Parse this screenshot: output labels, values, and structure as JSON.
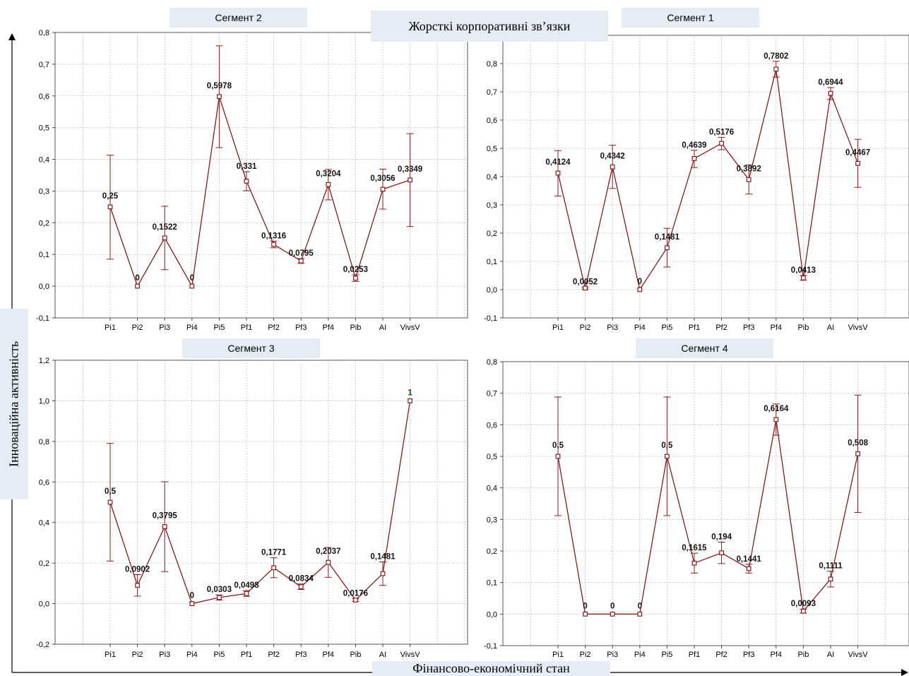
{
  "title": "Жорсткі корпоративні зв’язки",
  "xaxis_title": "Фінансово-економічний стан",
  "yaxis_title": "Інноваційна активність",
  "colors": {
    "series": "#8b1a1a",
    "grid": "#a8a8a8",
    "label_bg": "#e4ecf6"
  },
  "chart_data": [
    {
      "type": "line",
      "title": "Сегмент 2",
      "categories": [
        "Pi1",
        "Pi2",
        "Pi3",
        "Pi4",
        "Pi5",
        "Pf1",
        "Pf2",
        "Pf3",
        "Pf4",
        "Pib",
        "AI",
        "VivsV"
      ],
      "values": [
        0.25,
        0,
        0.1522,
        0,
        0.5978,
        0.331,
        0.1316,
        0.0795,
        0.3204,
        0.0253,
        0.3056,
        0.3349
      ],
      "labels": [
        "0,25",
        "0",
        "0,1522",
        "0",
        "0,5978",
        "0,331",
        "0,1316",
        "0,0795",
        "0,3204",
        "0,0253",
        "0,3056",
        "0,3349"
      ],
      "err_low": [
        0.085,
        0,
        0.052,
        0,
        0.437,
        0.301,
        0.121,
        0.072,
        0.272,
        0.015,
        0.243,
        0.188
      ],
      "err_high": [
        0.413,
        0,
        0.252,
        0,
        0.758,
        0.361,
        0.142,
        0.087,
        0.368,
        0.036,
        0.369,
        0.481
      ],
      "ylim": [
        -0.1,
        0.8
      ],
      "yticks": [
        -0.1,
        0,
        0.1,
        0.2,
        0.3,
        0.4,
        0.5,
        0.6,
        0.7,
        0.8
      ],
      "ytick_labels": [
        "-0,1",
        "0,0",
        "0,1",
        "0,2",
        "0,3",
        "0,4",
        "0,5",
        "0,6",
        "0,7",
        "0,8"
      ]
    },
    {
      "type": "line",
      "title": "Сегмент 1",
      "categories": [
        "Pi1",
        "Pi2",
        "Pi3",
        "Pi4",
        "Pi5",
        "Pf1",
        "Pf2",
        "Pf3",
        "Pf4",
        "Pib",
        "AI",
        "VivsV"
      ],
      "values": [
        0.4124,
        0.0052,
        0.4342,
        0,
        0.1481,
        0.4639,
        0.5176,
        0.3892,
        0.7802,
        0.0413,
        0.6944,
        0.4467
      ],
      "labels": [
        "0,4124",
        "0,0052",
        "0,4342",
        "0",
        "0,1481",
        "0,4639",
        "0,5176",
        "0,3892",
        "0,7802",
        "0,0413",
        "0,6944",
        "0,4467"
      ],
      "err_low": [
        0.331,
        0.002,
        0.358,
        0,
        0.08,
        0.432,
        0.495,
        0.338,
        0.752,
        0.033,
        0.673,
        0.362
      ],
      "err_high": [
        0.492,
        0.009,
        0.511,
        0,
        0.217,
        0.493,
        0.539,
        0.441,
        0.808,
        0.05,
        0.715,
        0.532
      ],
      "ylim": [
        -0.1,
        0.9
      ],
      "yticks": [
        -0.1,
        0,
        0.1,
        0.2,
        0.3,
        0.4,
        0.5,
        0.6,
        0.7,
        0.8
      ],
      "ytick_labels": [
        "-0,1",
        "0,0",
        "0,1",
        "0,2",
        "0,3",
        "0,4",
        "0,5",
        "0,6",
        "0,7",
        "0,8"
      ]
    },
    {
      "type": "line",
      "title": "Сегмент 3",
      "categories": [
        "Pi1",
        "Pi2",
        "Pi3",
        "Pi4",
        "Pi5",
        "Pf1",
        "Pf2",
        "Pf3",
        "Pf4",
        "Pib",
        "AI",
        "VivsV"
      ],
      "values": [
        0.5,
        0.0902,
        0.3795,
        0,
        0.0303,
        0.0498,
        0.1771,
        0.0834,
        0.2037,
        0.0176,
        0.1481,
        1
      ],
      "labels": [
        "0,5",
        "0,0902",
        "0,3795",
        "0",
        "0,0303",
        "0,0498",
        "0,1771",
        "0,0834",
        "0,2037",
        "0,0176",
        "0,1481",
        "1"
      ],
      "err_low": [
        0.21,
        0.037,
        0.158,
        0,
        0.018,
        0.036,
        0.128,
        0.07,
        0.13,
        0.011,
        0.09,
        1
      ],
      "err_high": [
        0.79,
        0.143,
        0.601,
        0,
        0.043,
        0.064,
        0.226,
        0.097,
        0.277,
        0.025,
        0.206,
        1
      ],
      "ylim": [
        -0.2,
        1.2
      ],
      "yticks": [
        -0.2,
        0,
        0.2,
        0.4,
        0.6,
        0.8,
        1.0,
        1.2
      ],
      "ytick_labels": [
        "-0,2",
        "0,0",
        "0,2",
        "0,4",
        "0,6",
        "0,8",
        "1,0",
        "1,2"
      ]
    },
    {
      "type": "line",
      "title": "Сегмент 4",
      "categories": [
        "Pi1",
        "Pi2",
        "Pi3",
        "Pi4",
        "Pi5",
        "Pf1",
        "Pf2",
        "Pf3",
        "Pf4",
        "Pib",
        "AI",
        "VivsV"
      ],
      "values": [
        0.5,
        0,
        0,
        0,
        0.5,
        0.1615,
        0.194,
        0.1441,
        0.6164,
        0.0093,
        0.1111,
        0.508
      ],
      "labels": [
        "0,5",
        "0",
        "0",
        "0",
        "0,5",
        "0,1615",
        "0,194",
        "0,1441",
        "0,6164",
        "0,0093",
        "0,1111",
        "0,508"
      ],
      "err_low": [
        0.312,
        0,
        0,
        0,
        0.312,
        0.13,
        0.16,
        0.13,
        0.567,
        0.003,
        0.086,
        0.322
      ],
      "err_high": [
        0.688,
        0,
        0,
        0,
        0.688,
        0.193,
        0.228,
        0.158,
        0.666,
        0.016,
        0.136,
        0.694
      ],
      "ylim": [
        -0.1,
        0.8
      ],
      "yticks": [
        -0.1,
        0,
        0.1,
        0.2,
        0.3,
        0.4,
        0.5,
        0.6,
        0.7,
        0.8
      ],
      "ytick_labels": [
        "-0,1",
        "0,0",
        "0,1",
        "0,2",
        "0,3",
        "0,4",
        "0,5",
        "0,6",
        "0,7",
        "0,8"
      ]
    }
  ]
}
